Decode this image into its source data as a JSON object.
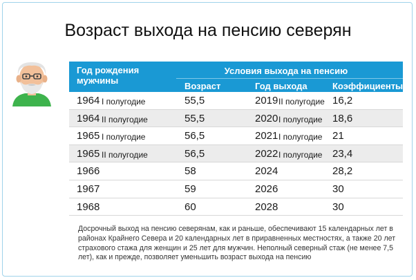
{
  "title": "Возраст выхода на пенсию северян",
  "header": {
    "birth_year": "Год рождения мужчины",
    "conditions": "Условия выхода на пенсию",
    "age": "Возраст",
    "year": "Год выхода",
    "coef": "Коэффициенты"
  },
  "rows": [
    {
      "birth": "1964",
      "half": "I полугодие",
      "age": "55,5",
      "year": "2019",
      "year_half": "II полугодие",
      "coef": "16,2"
    },
    {
      "birth": "1964",
      "half": "II полугодие",
      "age": "55,5",
      "year": "2020",
      "year_half": "I полугодие",
      "coef": "18,6"
    },
    {
      "birth": "1965",
      "half": "I полугодие",
      "age": "56,5",
      "year": "2021",
      "year_half": "I полугодие",
      "coef": "21"
    },
    {
      "birth": "1965",
      "half": "II полугодие",
      "age": "56,5",
      "year": "2022",
      "year_half": "I полугодие",
      "coef": "23,4"
    },
    {
      "birth": "1966",
      "half": "",
      "age": "58",
      "year": "2024",
      "year_half": "",
      "coef": "28,2"
    },
    {
      "birth": "1967",
      "half": "",
      "age": "59",
      "year": "2026",
      "year_half": "",
      "coef": "30"
    },
    {
      "birth": "1968",
      "half": "",
      "age": "60",
      "year": "2028",
      "year_half": "",
      "coef": "30"
    }
  ],
  "note": "Досрочный выход на пенсию северянам, как и раньше, обеспечивают 15 календарных лет в районах Крайнего Севера и 20 календарных лет в приравненных местностях, а также 20 лет страхового стажа для женщин и 25 лет для мужчин. Неполный северный стаж (не менее 7,5 лет), как и прежде, позволяет уменьшить возраст выхода на пенсию",
  "colors": {
    "header_bg": "#1a99d4",
    "row_shade": "#ececec",
    "frame_border": "#9fd3ea"
  },
  "icons": {
    "avatar": "elderly-man-avatar-icon"
  }
}
